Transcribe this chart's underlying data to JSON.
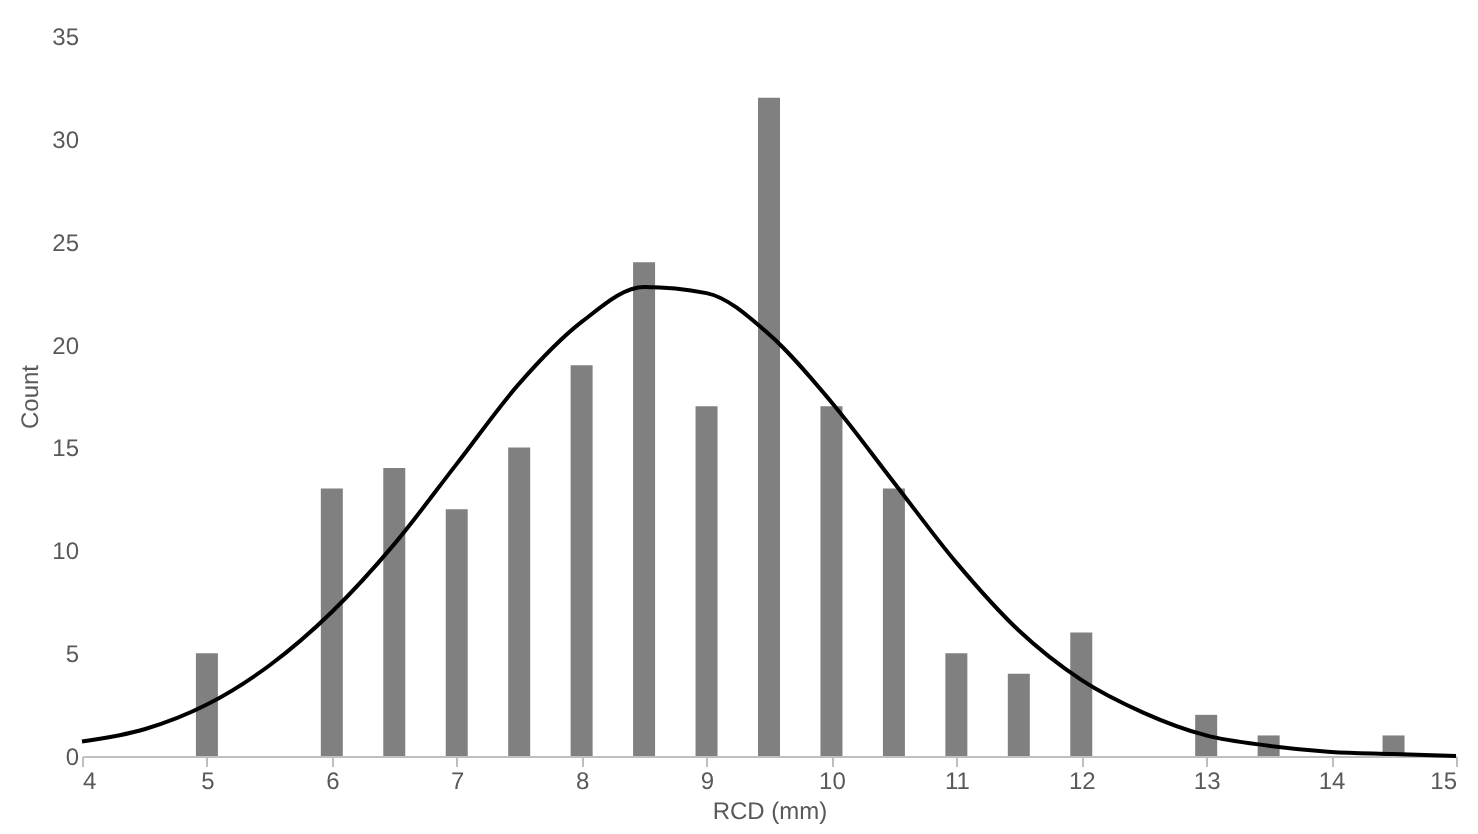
{
  "chart_data": {
    "type": "bar",
    "xlabel": "RCD (mm)",
    "ylabel": "Count",
    "xlim": [
      4,
      15
    ],
    "xticks": [
      4,
      5,
      6,
      7,
      8,
      9,
      10,
      11,
      12,
      13,
      14,
      15
    ],
    "ylim": [
      0,
      35
    ],
    "yticks": [
      0,
      5,
      10,
      15,
      20,
      25,
      30,
      35
    ],
    "grid": false,
    "series": [
      {
        "color": "#808080",
        "x": [
          5,
          6,
          6.5,
          7,
          7.5,
          8,
          8.5,
          9,
          9.5,
          10,
          10.5,
          11,
          11.5,
          12,
          13,
          13.5,
          14.5
        ],
        "values": [
          5,
          13,
          14,
          12,
          15,
          19,
          24,
          17,
          32,
          17,
          13,
          5,
          4,
          6,
          2,
          1,
          1
        ]
      },
      {
        "type": "line",
        "color": "#000000",
        "x": [
          4,
          4.5,
          5,
          5.5,
          6,
          6.5,
          7,
          7.5,
          8,
          8.5,
          9,
          9.5,
          10,
          10.5,
          11,
          11.5,
          12,
          12.5,
          13,
          13.5,
          14,
          14.5,
          15
        ],
        "values": [
          0.7,
          1.3,
          2.5,
          4.4,
          7,
          10.3,
          14.2,
          18.1,
          21.1,
          22.8,
          22.5,
          20.5,
          17.2,
          13.3,
          9.4,
          6.1,
          3.7,
          2.1,
          1.0,
          0.5,
          0.2,
          0.1,
          0.0
        ]
      }
    ]
  }
}
